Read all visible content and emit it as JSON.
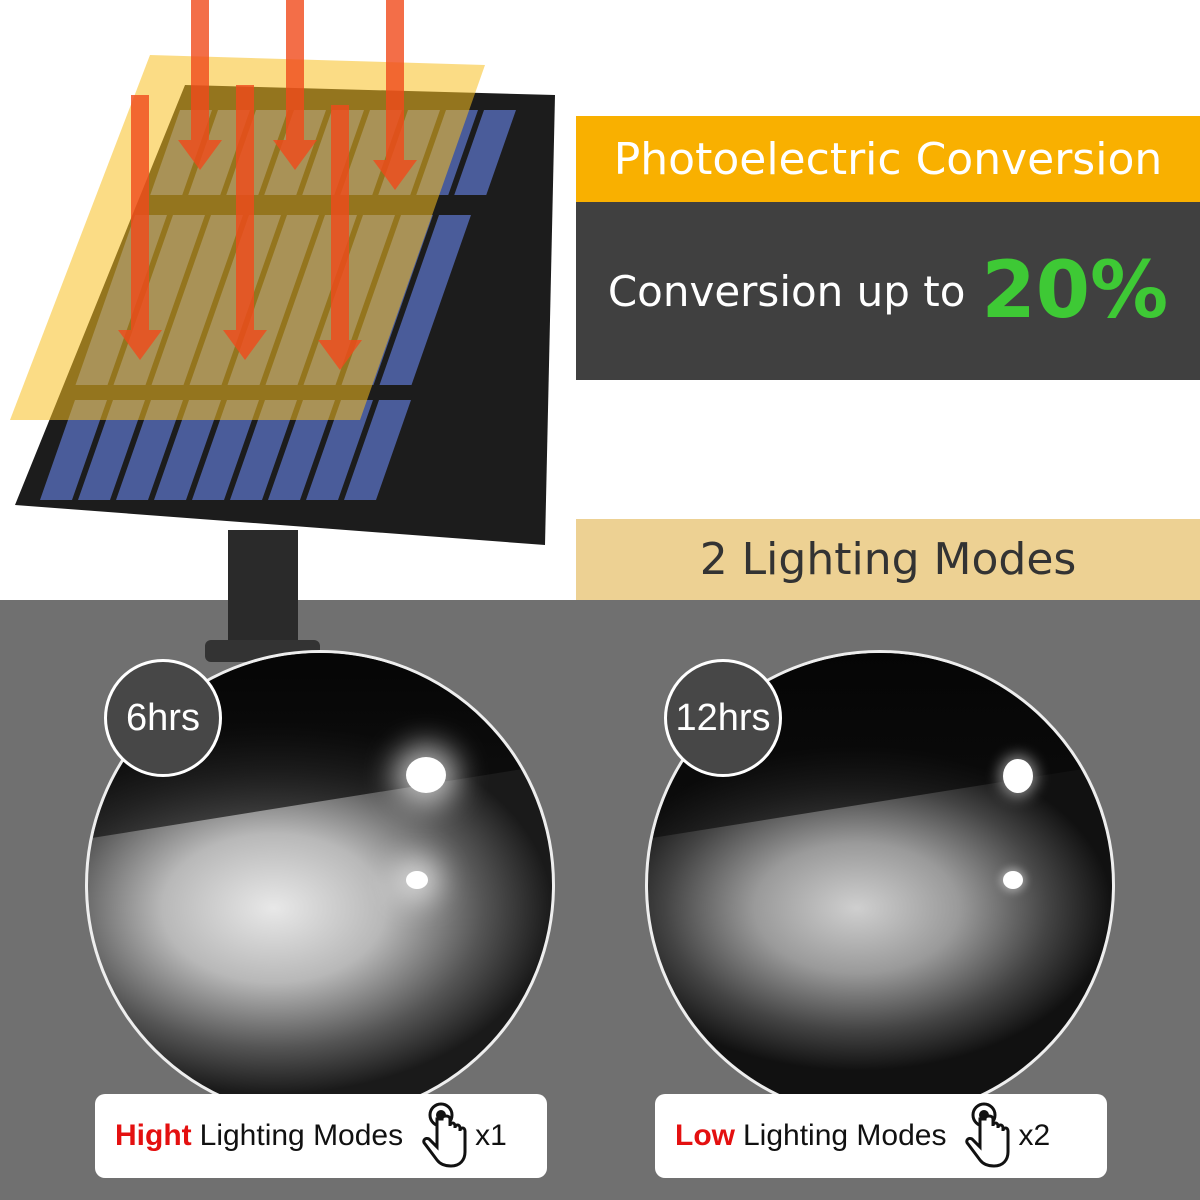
{
  "header": {
    "title": "Photoelectric Conversion",
    "conversion_text": "Conversion up to",
    "conversion_value": "20%"
  },
  "modes": {
    "title": "2 Lighting Modes",
    "items": [
      {
        "duration": "6hrs",
        "level": "Hight",
        "label": "Lighting Modes",
        "taps": "x1",
        "icon": "tap-hand-icon"
      },
      {
        "duration": "12hrs",
        "level": "Low",
        "label": "Lighting Modes",
        "taps": "x2",
        "icon": "tap-hand-icon"
      }
    ]
  },
  "colors": {
    "orange": "#f9b000",
    "dark": "#404040",
    "green": "#3ec935",
    "beige": "#edd193",
    "red": "#e41010",
    "gray": "#707070"
  }
}
